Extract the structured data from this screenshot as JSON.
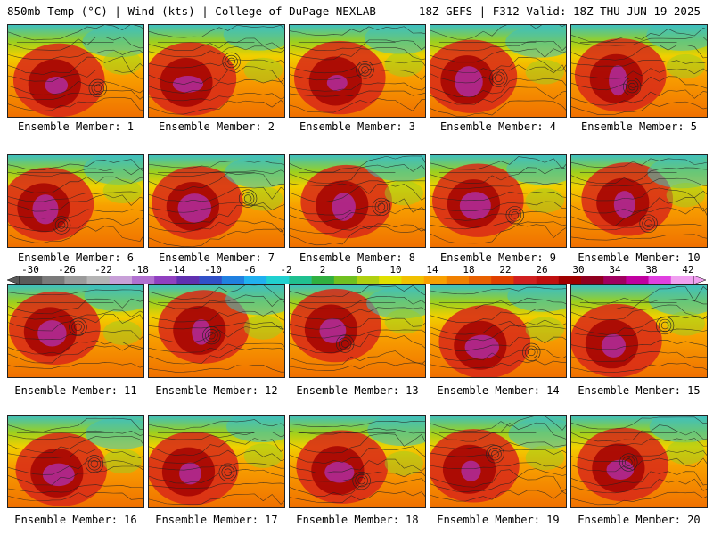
{
  "header": {
    "left": "850mb Temp (°C) | Wind (kts) | College of DuPage NEXLAB",
    "right": "18Z GEFS | F312 Valid: 18Z THU JUN 19 2025"
  },
  "members": [
    "Ensemble Member: 1",
    "Ensemble Member: 2",
    "Ensemble Member: 3",
    "Ensemble Member: 4",
    "Ensemble Member: 5",
    "Ensemble Member: 6",
    "Ensemble Member: 7",
    "Ensemble Member: 8",
    "Ensemble Member: 9",
    "Ensemble Member: 10",
    "Ensemble Member: 11",
    "Ensemble Member: 12",
    "Ensemble Member: 13",
    "Ensemble Member: 14",
    "Ensemble Member: 15",
    "Ensemble Member: 16",
    "Ensemble Member: 17",
    "Ensemble Member: 18",
    "Ensemble Member: 19",
    "Ensemble Member: 20"
  ],
  "colorbar": {
    "ticks": [
      "-30",
      "-26",
      "-22",
      "-18",
      "-14",
      "-10",
      "-6",
      "-2",
      "2",
      "6",
      "10",
      "14",
      "18",
      "22",
      "26",
      "30",
      "34",
      "38",
      "42"
    ],
    "colors": [
      "#5a5a5a",
      "#7a7a7a",
      "#9a9a9a",
      "#b4b4b4",
      "#c8a0d8",
      "#b070d0",
      "#9040c0",
      "#6030b0",
      "#3050c8",
      "#2080e0",
      "#20b0f0",
      "#20d0d0",
      "#20c090",
      "#30b040",
      "#70c020",
      "#b0d010",
      "#e0e000",
      "#f0c000",
      "#f8a000",
      "#f08000",
      "#e86000",
      "#e04000",
      "#d02020",
      "#c01010",
      "#a00000",
      "#900020",
      "#a00060",
      "#c000a0",
      "#e040e0",
      "#f0a0f0"
    ]
  },
  "map_colors": {
    "cold_north": "#3ec0c0",
    "green": "#9ad020",
    "yellow": "#f0d000",
    "orange": "#f8a000",
    "dark_orange": "#f07000",
    "red": "#d82818",
    "dark_red": "#a00000",
    "magenta": "#b030b0",
    "contour": "#222222"
  }
}
